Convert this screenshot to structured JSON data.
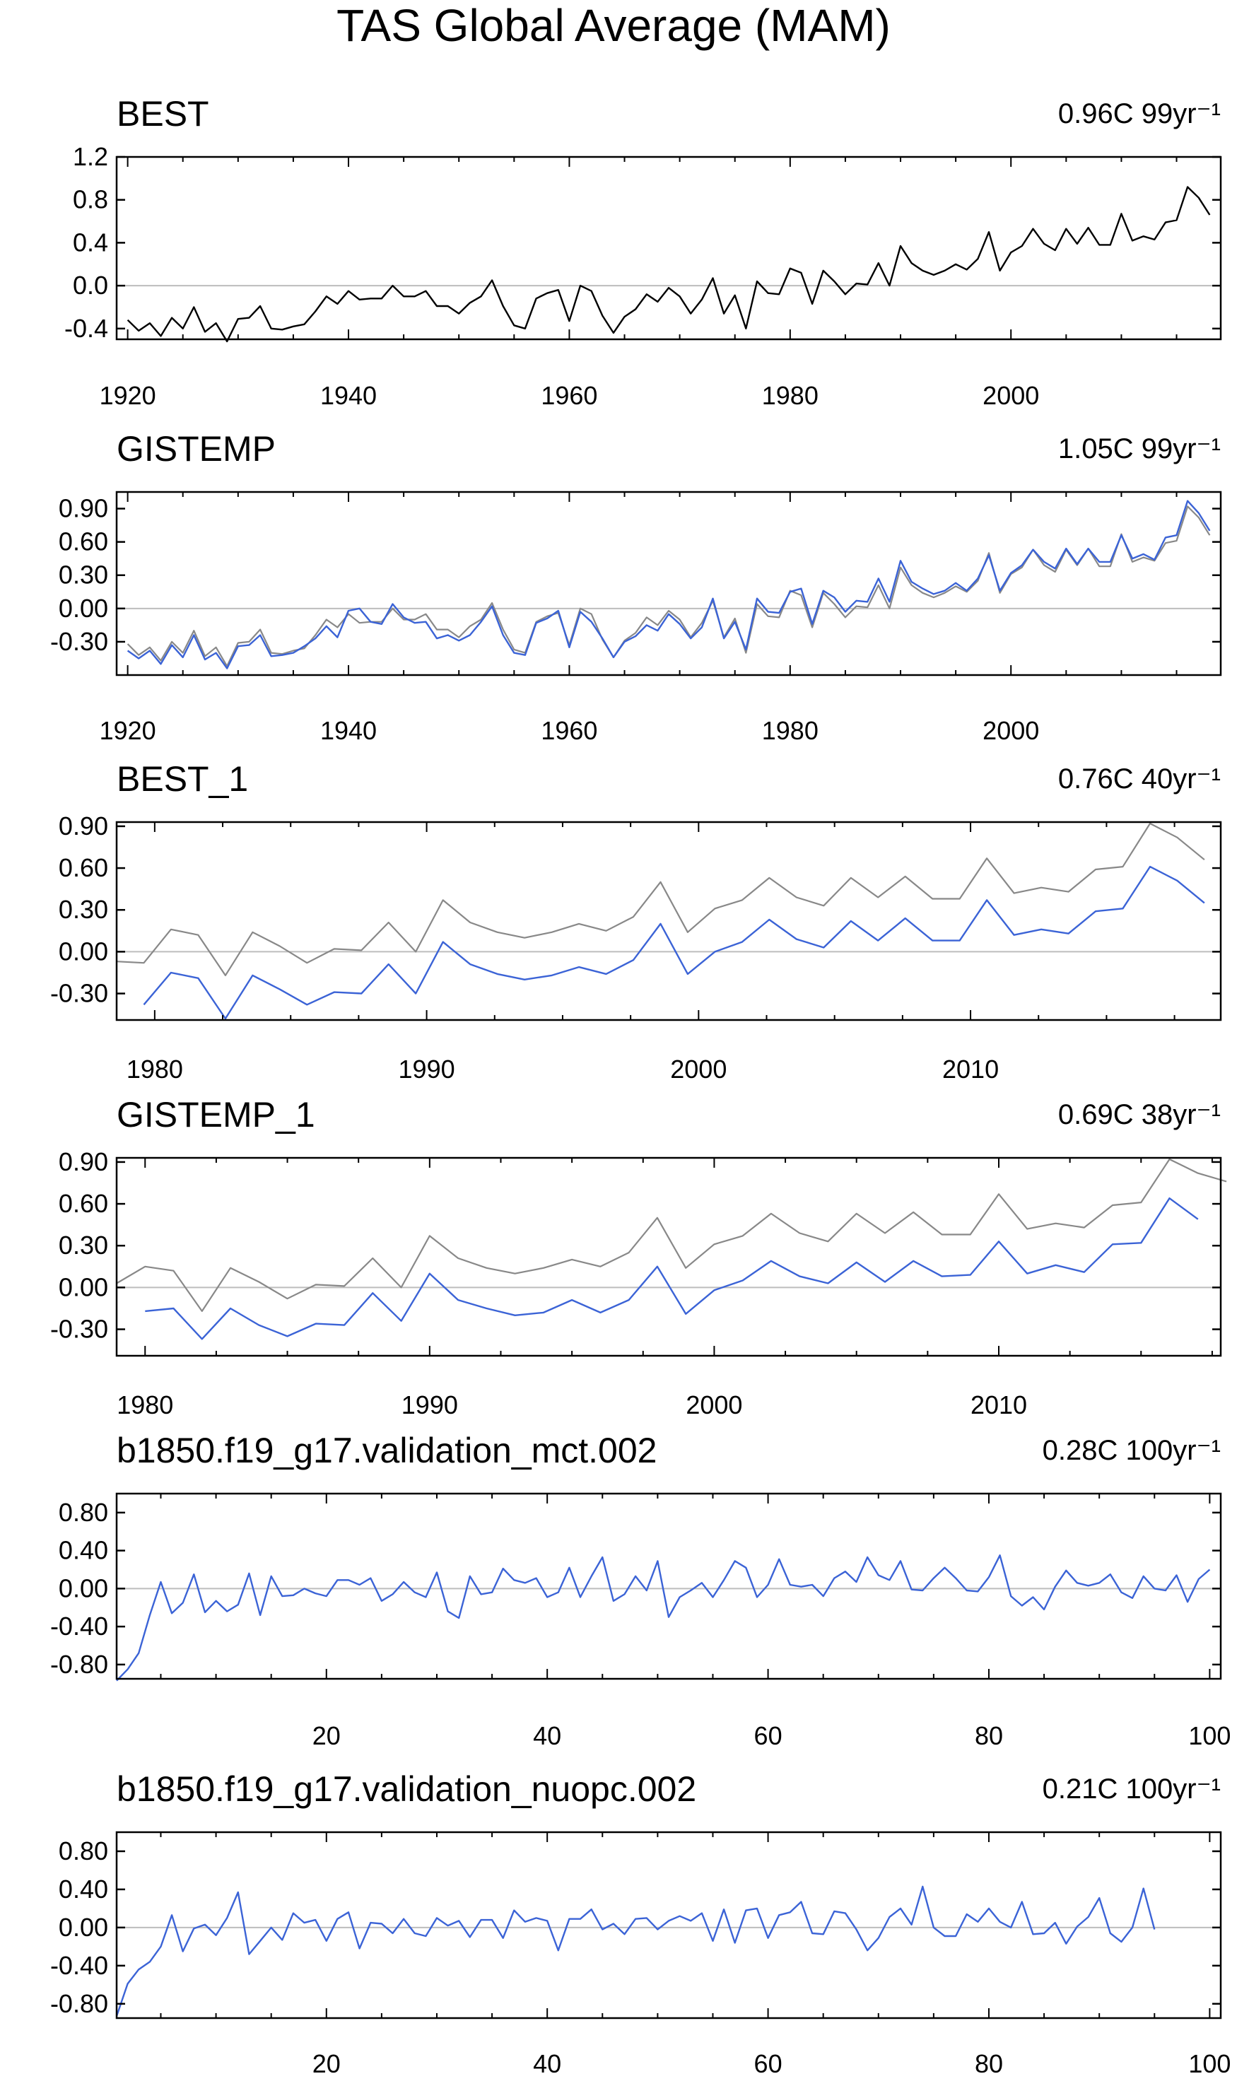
{
  "title": "TAS Global Average (MAM)",
  "colors": {
    "reference": "#000000",
    "obs": "#888888",
    "model": "#3b63d6",
    "zero": "#bdbdbd"
  },
  "chart_data": [
    {
      "type": "line",
      "title": "BEST",
      "stat": "0.96C 99yr⁻¹",
      "xlim": [
        1919,
        2019
      ],
      "ylim": [
        -0.5,
        1.2
      ],
      "yticks": [
        1.2,
        0.8,
        0.4,
        0.0,
        -0.4
      ],
      "ytick_labels": [
        "1.2",
        "0.8",
        "0.4",
        "0.0",
        "-0.4"
      ],
      "xticks": [
        1920,
        1940,
        1960,
        1980,
        2000
      ],
      "xtick_labels": [
        "1920",
        "1940",
        "1960",
        "1980",
        "2000"
      ],
      "x_start": 1920,
      "series": [
        {
          "name": "BEST",
          "color": "#000000",
          "values": [
            -0.32,
            -0.42,
            -0.35,
            -0.47,
            -0.3,
            -0.4,
            -0.2,
            -0.43,
            -0.35,
            -0.52,
            -0.31,
            -0.3,
            -0.19,
            -0.4,
            -0.41,
            -0.38,
            -0.36,
            -0.24,
            -0.1,
            -0.17,
            -0.05,
            -0.13,
            -0.12,
            -0.12,
            0.0,
            -0.1,
            -0.1,
            -0.05,
            -0.19,
            -0.19,
            -0.26,
            -0.16,
            -0.1,
            0.05,
            -0.19,
            -0.37,
            -0.4,
            -0.12,
            -0.07,
            -0.04,
            -0.33,
            0.0,
            -0.05,
            -0.28,
            -0.44,
            -0.29,
            -0.22,
            -0.08,
            -0.15,
            -0.02,
            -0.1,
            -0.26,
            -0.13,
            0.07,
            -0.26,
            -0.09,
            -0.4,
            0.04,
            -0.07,
            -0.08,
            0.16,
            0.12,
            -0.17,
            0.14,
            0.04,
            -0.08,
            0.02,
            0.01,
            0.21,
            0.0,
            0.37,
            0.21,
            0.14,
            0.1,
            0.14,
            0.2,
            0.15,
            0.25,
            0.5,
            0.14,
            0.31,
            0.37,
            0.53,
            0.39,
            0.33,
            0.53,
            0.39,
            0.54,
            0.38,
            0.38,
            0.67,
            0.42,
            0.46,
            0.43,
            0.59,
            0.61,
            0.92,
            0.82,
            0.66
          ]
        }
      ]
    },
    {
      "type": "line",
      "title": "GISTEMP",
      "stat": "1.05C 99yr⁻¹",
      "xlim": [
        1919,
        2019
      ],
      "ylim": [
        -0.6,
        1.05
      ],
      "yticks": [
        0.9,
        0.6,
        0.3,
        0.0,
        -0.3
      ],
      "ytick_labels": [
        "0.90",
        "0.60",
        "0.30",
        "0.00",
        "-0.30"
      ],
      "xticks": [
        1920,
        1940,
        1960,
        1980,
        2000
      ],
      "xtick_labels": [
        "1920",
        "1940",
        "1960",
        "1980",
        "2000"
      ],
      "x_start": 1920,
      "series": [
        {
          "name": "BEST",
          "color": "#888888",
          "values": [
            -0.32,
            -0.42,
            -0.35,
            -0.47,
            -0.3,
            -0.4,
            -0.2,
            -0.43,
            -0.35,
            -0.52,
            -0.31,
            -0.3,
            -0.19,
            -0.4,
            -0.41,
            -0.38,
            -0.36,
            -0.24,
            -0.1,
            -0.17,
            -0.05,
            -0.13,
            -0.12,
            -0.12,
            0.0,
            -0.1,
            -0.1,
            -0.05,
            -0.19,
            -0.19,
            -0.26,
            -0.16,
            -0.1,
            0.05,
            -0.19,
            -0.37,
            -0.4,
            -0.12,
            -0.07,
            -0.04,
            -0.33,
            0.0,
            -0.05,
            -0.28,
            -0.44,
            -0.29,
            -0.22,
            -0.08,
            -0.15,
            -0.02,
            -0.1,
            -0.26,
            -0.13,
            0.07,
            -0.26,
            -0.09,
            -0.4,
            0.04,
            -0.07,
            -0.08,
            0.16,
            0.12,
            -0.17,
            0.14,
            0.04,
            -0.08,
            0.02,
            0.01,
            0.21,
            0.0,
            0.37,
            0.21,
            0.14,
            0.1,
            0.14,
            0.2,
            0.15,
            0.25,
            0.5,
            0.14,
            0.31,
            0.37,
            0.53,
            0.39,
            0.33,
            0.53,
            0.39,
            0.54,
            0.38,
            0.38,
            0.67,
            0.42,
            0.46,
            0.43,
            0.59,
            0.61,
            0.92,
            0.82,
            0.66
          ]
        },
        {
          "name": "GISTEMP",
          "color": "#3b63d6",
          "values": [
            -0.38,
            -0.45,
            -0.38,
            -0.5,
            -0.33,
            -0.44,
            -0.24,
            -0.46,
            -0.4,
            -0.54,
            -0.34,
            -0.33,
            -0.24,
            -0.43,
            -0.42,
            -0.4,
            -0.34,
            -0.27,
            -0.16,
            -0.26,
            -0.02,
            0.0,
            -0.12,
            -0.14,
            0.04,
            -0.08,
            -0.13,
            -0.12,
            -0.27,
            -0.24,
            -0.29,
            -0.24,
            -0.12,
            0.02,
            -0.24,
            -0.4,
            -0.42,
            -0.13,
            -0.09,
            -0.02,
            -0.35,
            -0.03,
            -0.12,
            -0.27,
            -0.44,
            -0.3,
            -0.25,
            -0.15,
            -0.2,
            -0.05,
            -0.14,
            -0.27,
            -0.17,
            0.09,
            -0.27,
            -0.12,
            -0.37,
            0.09,
            -0.03,
            -0.04,
            0.15,
            0.18,
            -0.14,
            0.16,
            0.1,
            -0.03,
            0.07,
            0.06,
            0.27,
            0.06,
            0.43,
            0.24,
            0.18,
            0.13,
            0.16,
            0.23,
            0.16,
            0.27,
            0.48,
            0.16,
            0.32,
            0.39,
            0.53,
            0.42,
            0.36,
            0.54,
            0.4,
            0.54,
            0.42,
            0.42,
            0.66,
            0.45,
            0.49,
            0.44,
            0.64,
            0.66,
            0.97,
            0.86,
            0.7
          ]
        }
      ]
    },
    {
      "type": "line",
      "title": "BEST_1",
      "stat": "0.76C 40yr⁻¹",
      "xlim": [
        1978.6,
        2019.2
      ],
      "ylim": [
        -0.49,
        0.93
      ],
      "yticks": [
        0.9,
        0.6,
        0.3,
        0.0,
        -0.3
      ],
      "ytick_labels": [
        "0.90",
        "0.60",
        "0.30",
        "0.00",
        "-0.30"
      ],
      "xticks": [
        1980,
        1990,
        2000,
        2010
      ],
      "xtick_labels": [
        "1980",
        "1990",
        "2000",
        "2010"
      ],
      "x_start": 1978.6,
      "series": [
        {
          "name": "BEST",
          "color": "#888888",
          "values": [
            -0.07,
            -0.08,
            0.16,
            0.12,
            -0.17,
            0.14,
            0.04,
            -0.08,
            0.02,
            0.01,
            0.21,
            0.0,
            0.37,
            0.21,
            0.14,
            0.1,
            0.14,
            0.2,
            0.15,
            0.25,
            0.5,
            0.14,
            0.31,
            0.37,
            0.53,
            0.39,
            0.33,
            0.53,
            0.39,
            0.54,
            0.38,
            0.38,
            0.67,
            0.42,
            0.46,
            0.43,
            0.59,
            0.61,
            0.92,
            0.82,
            0.66
          ]
        },
        {
          "name": "BEST_1",
          "color": "#3b63d6",
          "values": [
            null,
            -0.38,
            -0.15,
            -0.19,
            -0.48,
            -0.17,
            -0.27,
            -0.38,
            -0.29,
            -0.3,
            -0.09,
            -0.3,
            0.07,
            -0.09,
            -0.16,
            -0.2,
            -0.17,
            -0.11,
            -0.16,
            -0.06,
            0.2,
            -0.16,
            0.0,
            0.07,
            0.23,
            0.09,
            0.03,
            0.22,
            0.08,
            0.24,
            0.08,
            0.08,
            0.37,
            0.12,
            0.16,
            0.13,
            0.29,
            0.31,
            0.61,
            0.51,
            0.35
          ]
        }
      ]
    },
    {
      "type": "line",
      "title": "GISTEMP_1",
      "stat": "0.69C 38yr⁻¹",
      "xlim": [
        1979,
        2017.8
      ],
      "ylim": [
        -0.49,
        0.93
      ],
      "yticks": [
        0.9,
        0.6,
        0.3,
        0.0,
        -0.3
      ],
      "ytick_labels": [
        "0.90",
        "0.60",
        "0.30",
        "0.00",
        "-0.30"
      ],
      "xticks": [
        1980,
        1990,
        2000,
        2010
      ],
      "xtick_labels": [
        "1980",
        "1990",
        "2000",
        "2010"
      ],
      "x_start": 1979,
      "series": [
        {
          "name": "BEST",
          "color": "#888888",
          "values": [
            0.03,
            0.15,
            0.12,
            -0.17,
            0.14,
            0.04,
            -0.08,
            0.02,
            0.01,
            0.21,
            0.0,
            0.37,
            0.21,
            0.14,
            0.1,
            0.14,
            0.2,
            0.15,
            0.25,
            0.5,
            0.14,
            0.31,
            0.37,
            0.53,
            0.39,
            0.33,
            0.53,
            0.39,
            0.54,
            0.38,
            0.38,
            0.67,
            0.42,
            0.46,
            0.43,
            0.59,
            0.61,
            0.92,
            0.82,
            0.76
          ]
        },
        {
          "name": "GISTEMP_1",
          "color": "#3b63d6",
          "values": [
            null,
            -0.17,
            -0.15,
            -0.37,
            -0.15,
            -0.27,
            -0.35,
            -0.26,
            -0.27,
            -0.04,
            -0.24,
            0.1,
            -0.09,
            -0.15,
            -0.2,
            -0.18,
            -0.09,
            -0.18,
            -0.09,
            0.15,
            -0.19,
            -0.02,
            0.05,
            0.19,
            0.08,
            0.03,
            0.18,
            0.04,
            0.19,
            0.08,
            0.09,
            0.33,
            0.1,
            0.16,
            0.11,
            0.31,
            0.32,
            0.64,
            0.49
          ]
        }
      ]
    },
    {
      "type": "line",
      "title": "b1850.f19_g17.validation_mct.002",
      "stat": "0.28C 100yr⁻¹",
      "xlim": [
        1,
        101
      ],
      "ylim": [
        -0.95,
        1.0
      ],
      "yticks": [
        0.8,
        0.4,
        0.0,
        -0.4,
        -0.8
      ],
      "ytick_labels": [
        "0.80",
        "0.40",
        "0.00",
        "-0.40",
        "-0.80"
      ],
      "xticks": [
        20,
        40,
        60,
        80,
        100
      ],
      "xtick_labels": [
        "20",
        "40",
        "60",
        "80",
        "100"
      ],
      "x_start": 1,
      "series": [
        {
          "name": "validation_mct.002",
          "color": "#3b63d6",
          "values": [
            -0.97,
            -0.85,
            -0.68,
            -0.28,
            0.07,
            -0.26,
            -0.15,
            0.15,
            -0.25,
            -0.13,
            -0.24,
            -0.17,
            0.16,
            -0.28,
            0.13,
            -0.08,
            -0.07,
            0.0,
            -0.05,
            -0.08,
            0.09,
            0.09,
            0.04,
            0.11,
            -0.13,
            -0.06,
            0.07,
            -0.04,
            -0.09,
            0.17,
            -0.24,
            -0.31,
            0.13,
            -0.06,
            -0.04,
            0.21,
            0.09,
            0.06,
            0.11,
            -0.09,
            -0.04,
            0.22,
            -0.09,
            0.13,
            0.33,
            -0.13,
            -0.06,
            0.13,
            -0.02,
            0.29,
            -0.3,
            -0.09,
            -0.02,
            0.06,
            -0.09,
            0.09,
            0.29,
            0.22,
            -0.09,
            0.04,
            0.31,
            0.04,
            0.02,
            0.04,
            -0.08,
            0.11,
            0.18,
            0.07,
            0.33,
            0.14,
            0.09,
            0.29,
            -0.01,
            -0.02,
            0.11,
            0.22,
            0.11,
            -0.02,
            -0.03,
            0.12,
            0.35,
            -0.08,
            -0.18,
            -0.09,
            -0.22,
            0.02,
            0.19,
            0.06,
            0.03,
            0.06,
            0.15,
            -0.04,
            -0.1,
            0.13,
            0.0,
            -0.02,
            0.14,
            -0.14,
            0.1,
            0.2
          ]
        }
      ]
    },
    {
      "type": "line",
      "title": "b1850.f19_g17.validation_nuopc.002",
      "stat": "0.21C 100yr⁻¹",
      "xlim": [
        1,
        101
      ],
      "ylim": [
        -0.95,
        1.0
      ],
      "yticks": [
        0.8,
        0.4,
        0.0,
        -0.4,
        -0.8
      ],
      "ytick_labels": [
        "0.80",
        "0.40",
        "0.00",
        "-0.40",
        "-0.80"
      ],
      "xticks": [
        20,
        40,
        60,
        80,
        100
      ],
      "xtick_labels": [
        "20",
        "40",
        "60",
        "80",
        "100"
      ],
      "x_start": 1,
      "series": [
        {
          "name": "validation_nuopc.002",
          "color": "#3b63d6",
          "values": [
            -0.93,
            -0.59,
            -0.44,
            -0.36,
            -0.2,
            0.13,
            -0.25,
            -0.01,
            0.03,
            -0.08,
            0.1,
            0.37,
            -0.28,
            -0.14,
            0.0,
            -0.13,
            0.15,
            0.05,
            0.08,
            -0.14,
            0.09,
            0.16,
            -0.22,
            0.05,
            0.04,
            -0.06,
            0.09,
            -0.06,
            -0.09,
            0.1,
            0.02,
            0.07,
            -0.1,
            0.08,
            0.08,
            -0.11,
            0.18,
            0.06,
            0.1,
            0.07,
            -0.24,
            0.09,
            0.09,
            0.19,
            -0.02,
            0.04,
            -0.07,
            0.09,
            0.1,
            -0.02,
            0.07,
            0.12,
            0.07,
            0.15,
            -0.14,
            0.19,
            -0.16,
            0.18,
            0.2,
            -0.11,
            0.13,
            0.16,
            0.27,
            -0.06,
            -0.07,
            0.17,
            0.15,
            -0.02,
            -0.24,
            -0.11,
            0.11,
            0.2,
            0.03,
            0.43,
            0.0,
            -0.09,
            -0.09,
            0.14,
            0.06,
            0.2,
            0.06,
            0.0,
            0.27,
            -0.07,
            -0.06,
            0.05,
            -0.17,
            0.01,
            0.11,
            0.31,
            -0.06,
            -0.15,
            0.0,
            0.41,
            -0.02
          ]
        }
      ]
    }
  ]
}
